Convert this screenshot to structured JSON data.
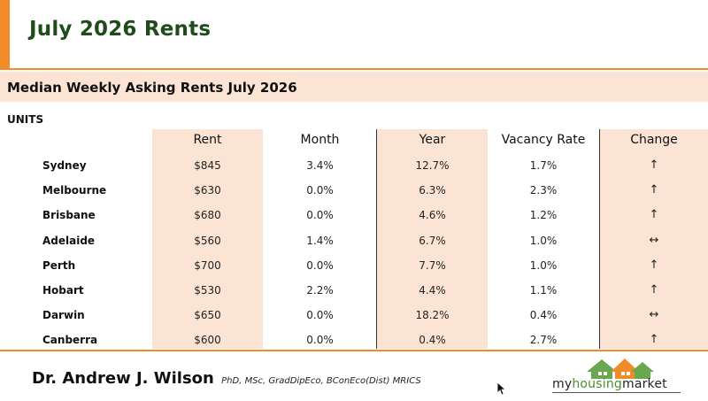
{
  "title": "July 2026 Rents",
  "subtitle": "Median Weekly Asking Rents July 2026",
  "section_label": "UNITS",
  "columns": [
    "Rent",
    "Month",
    "Year",
    "Vacancy Rate",
    "Change"
  ],
  "rows": [
    {
      "city": "Sydney",
      "rent": "$845",
      "month": "3.4%",
      "year": "12.7%",
      "vacancy": "1.7%",
      "change": "↑"
    },
    {
      "city": "Melbourne",
      "rent": "$630",
      "month": "0.0%",
      "year": "6.3%",
      "vacancy": "2.3%",
      "change": "↑"
    },
    {
      "city": "Brisbane",
      "rent": "$680",
      "month": "0.0%",
      "year": "4.6%",
      "vacancy": "1.2%",
      "change": "↑"
    },
    {
      "city": "Adelaide",
      "rent": "$560",
      "month": "1.4%",
      "year": "6.7%",
      "vacancy": "1.0%",
      "change": "↔"
    },
    {
      "city": "Perth",
      "rent": "$700",
      "month": "0.0%",
      "year": "7.7%",
      "vacancy": "1.0%",
      "change": "↑"
    },
    {
      "city": "Hobart",
      "rent": "$530",
      "month": "2.2%",
      "year": "4.4%",
      "vacancy": "1.1%",
      "change": "↑"
    },
    {
      "city": "Darwin",
      "rent": "$650",
      "month": "0.0%",
      "year": "18.2%",
      "vacancy": "0.4%",
      "change": "↔"
    },
    {
      "city": "Canberra",
      "rent": "$600",
      "month": "0.0%",
      "year": "0.4%",
      "vacancy": "2.7%",
      "change": "↑"
    }
  ],
  "footer": {
    "author": "Dr. Andrew J. Wilson",
    "credentials": "PhD, MSc, GradDipEco, BConEco(Dist) MRICS",
    "logo": {
      "prefix": "my",
      "highlight": "housing",
      "suffix": "market"
    }
  },
  "colors": {
    "accent": "#f28c28",
    "band": "#fce4d4",
    "title": "#1f4d1a",
    "logo_green": "#4a8f2c"
  }
}
